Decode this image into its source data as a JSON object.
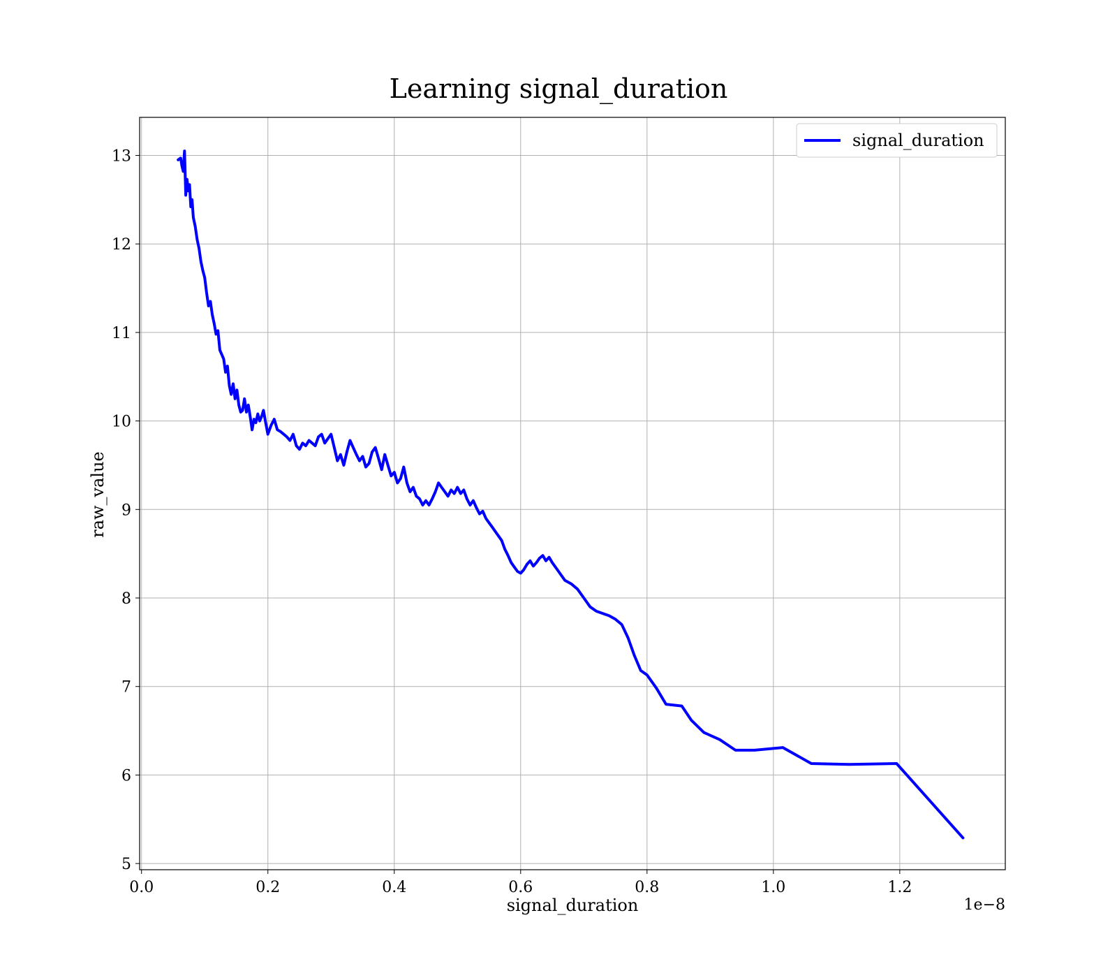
{
  "chart_data": {
    "type": "line",
    "title": "Learning signal_duration",
    "xlabel": "signal_duration",
    "ylabel": "raw_value",
    "x_offset_text": "1e−8",
    "xlim": [
      -0.003,
      1.367
    ],
    "ylim": [
      4.93,
      13.43
    ],
    "xticks": [
      0.0,
      0.2,
      0.4,
      0.6,
      0.8,
      1.0,
      1.2
    ],
    "xtick_labels": [
      "0.0",
      "0.2",
      "0.4",
      "0.6",
      "0.8",
      "1.0",
      "1.2"
    ],
    "yticks": [
      5,
      6,
      7,
      8,
      9,
      10,
      11,
      12,
      13
    ],
    "ytick_labels": [
      "5",
      "6",
      "7",
      "8",
      "9",
      "10",
      "11",
      "12",
      "13"
    ],
    "grid": true,
    "legend_position": "top-right",
    "series": [
      {
        "name": "signal_duration",
        "color": "#0000ff",
        "x": [
          0.058,
          0.062,
          0.064,
          0.066,
          0.068,
          0.07,
          0.072,
          0.074,
          0.076,
          0.078,
          0.08,
          0.082,
          0.085,
          0.088,
          0.091,
          0.094,
          0.097,
          0.1,
          0.103,
          0.106,
          0.109,
          0.112,
          0.115,
          0.118,
          0.121,
          0.124,
          0.127,
          0.13,
          0.133,
          0.136,
          0.139,
          0.142,
          0.145,
          0.148,
          0.151,
          0.154,
          0.157,
          0.16,
          0.163,
          0.166,
          0.169,
          0.172,
          0.175,
          0.178,
          0.181,
          0.184,
          0.187,
          0.19,
          0.193,
          0.196,
          0.2,
          0.205,
          0.21,
          0.215,
          0.22,
          0.225,
          0.23,
          0.235,
          0.24,
          0.245,
          0.25,
          0.255,
          0.26,
          0.265,
          0.27,
          0.275,
          0.28,
          0.285,
          0.29,
          0.295,
          0.3,
          0.305,
          0.31,
          0.315,
          0.32,
          0.325,
          0.33,
          0.335,
          0.34,
          0.345,
          0.35,
          0.355,
          0.36,
          0.365,
          0.37,
          0.375,
          0.38,
          0.385,
          0.39,
          0.395,
          0.4,
          0.405,
          0.41,
          0.415,
          0.42,
          0.425,
          0.43,
          0.435,
          0.44,
          0.445,
          0.45,
          0.455,
          0.46,
          0.465,
          0.47,
          0.475,
          0.48,
          0.485,
          0.49,
          0.495,
          0.5,
          0.505,
          0.51,
          0.515,
          0.52,
          0.525,
          0.53,
          0.535,
          0.54,
          0.545,
          0.55,
          0.555,
          0.56,
          0.565,
          0.57,
          0.575,
          0.58,
          0.585,
          0.59,
          0.595,
          0.6,
          0.605,
          0.61,
          0.615,
          0.62,
          0.625,
          0.63,
          0.635,
          0.64,
          0.645,
          0.65,
          0.66,
          0.67,
          0.68,
          0.69,
          0.7,
          0.71,
          0.72,
          0.74,
          0.75,
          0.76,
          0.77,
          0.78,
          0.79,
          0.8,
          0.815,
          0.83,
          0.855,
          0.87,
          0.89,
          0.915,
          0.94,
          0.97,
          1.015,
          1.06,
          1.12,
          1.195,
          1.3
        ],
        "y": [
          12.95,
          12.97,
          12.88,
          12.82,
          13.05,
          12.55,
          12.73,
          12.6,
          12.67,
          12.42,
          12.5,
          12.3,
          12.2,
          12.05,
          11.95,
          11.8,
          11.7,
          11.62,
          11.45,
          11.3,
          11.35,
          11.2,
          11.1,
          10.98,
          11.02,
          10.8,
          10.75,
          10.7,
          10.55,
          10.62,
          10.4,
          10.3,
          10.42,
          10.25,
          10.35,
          10.18,
          10.1,
          10.12,
          10.25,
          10.1,
          10.18,
          10.05,
          9.9,
          10.02,
          9.98,
          10.08,
          10.0,
          10.05,
          10.12,
          10.0,
          9.85,
          9.95,
          10.02,
          9.9,
          9.88,
          9.85,
          9.82,
          9.78,
          9.85,
          9.72,
          9.68,
          9.75,
          9.72,
          9.78,
          9.75,
          9.72,
          9.82,
          9.85,
          9.75,
          9.8,
          9.85,
          9.7,
          9.55,
          9.62,
          9.5,
          9.65,
          9.78,
          9.7,
          9.62,
          9.55,
          9.6,
          9.48,
          9.52,
          9.65,
          9.7,
          9.58,
          9.45,
          9.62,
          9.5,
          9.38,
          9.42,
          9.3,
          9.35,
          9.48,
          9.3,
          9.2,
          9.25,
          9.15,
          9.12,
          9.05,
          9.1,
          9.05,
          9.12,
          9.2,
          9.3,
          9.25,
          9.2,
          9.15,
          9.22,
          9.18,
          9.25,
          9.18,
          9.22,
          9.12,
          9.05,
          9.1,
          9.02,
          8.95,
          8.98,
          8.9,
          8.85,
          8.8,
          8.75,
          8.7,
          8.65,
          8.55,
          8.48,
          8.4,
          8.35,
          8.3,
          8.28,
          8.32,
          8.38,
          8.42,
          8.36,
          8.4,
          8.45,
          8.48,
          8.42,
          8.46,
          8.4,
          8.3,
          8.2,
          8.16,
          8.1,
          8.0,
          7.9,
          7.85,
          7.8,
          7.76,
          7.7,
          7.55,
          7.35,
          7.18,
          7.13,
          6.98,
          6.8,
          6.78,
          6.62,
          6.48,
          6.4,
          6.28,
          6.28,
          6.31,
          6.13,
          6.12,
          6.13,
          5.29
        ]
      }
    ]
  }
}
